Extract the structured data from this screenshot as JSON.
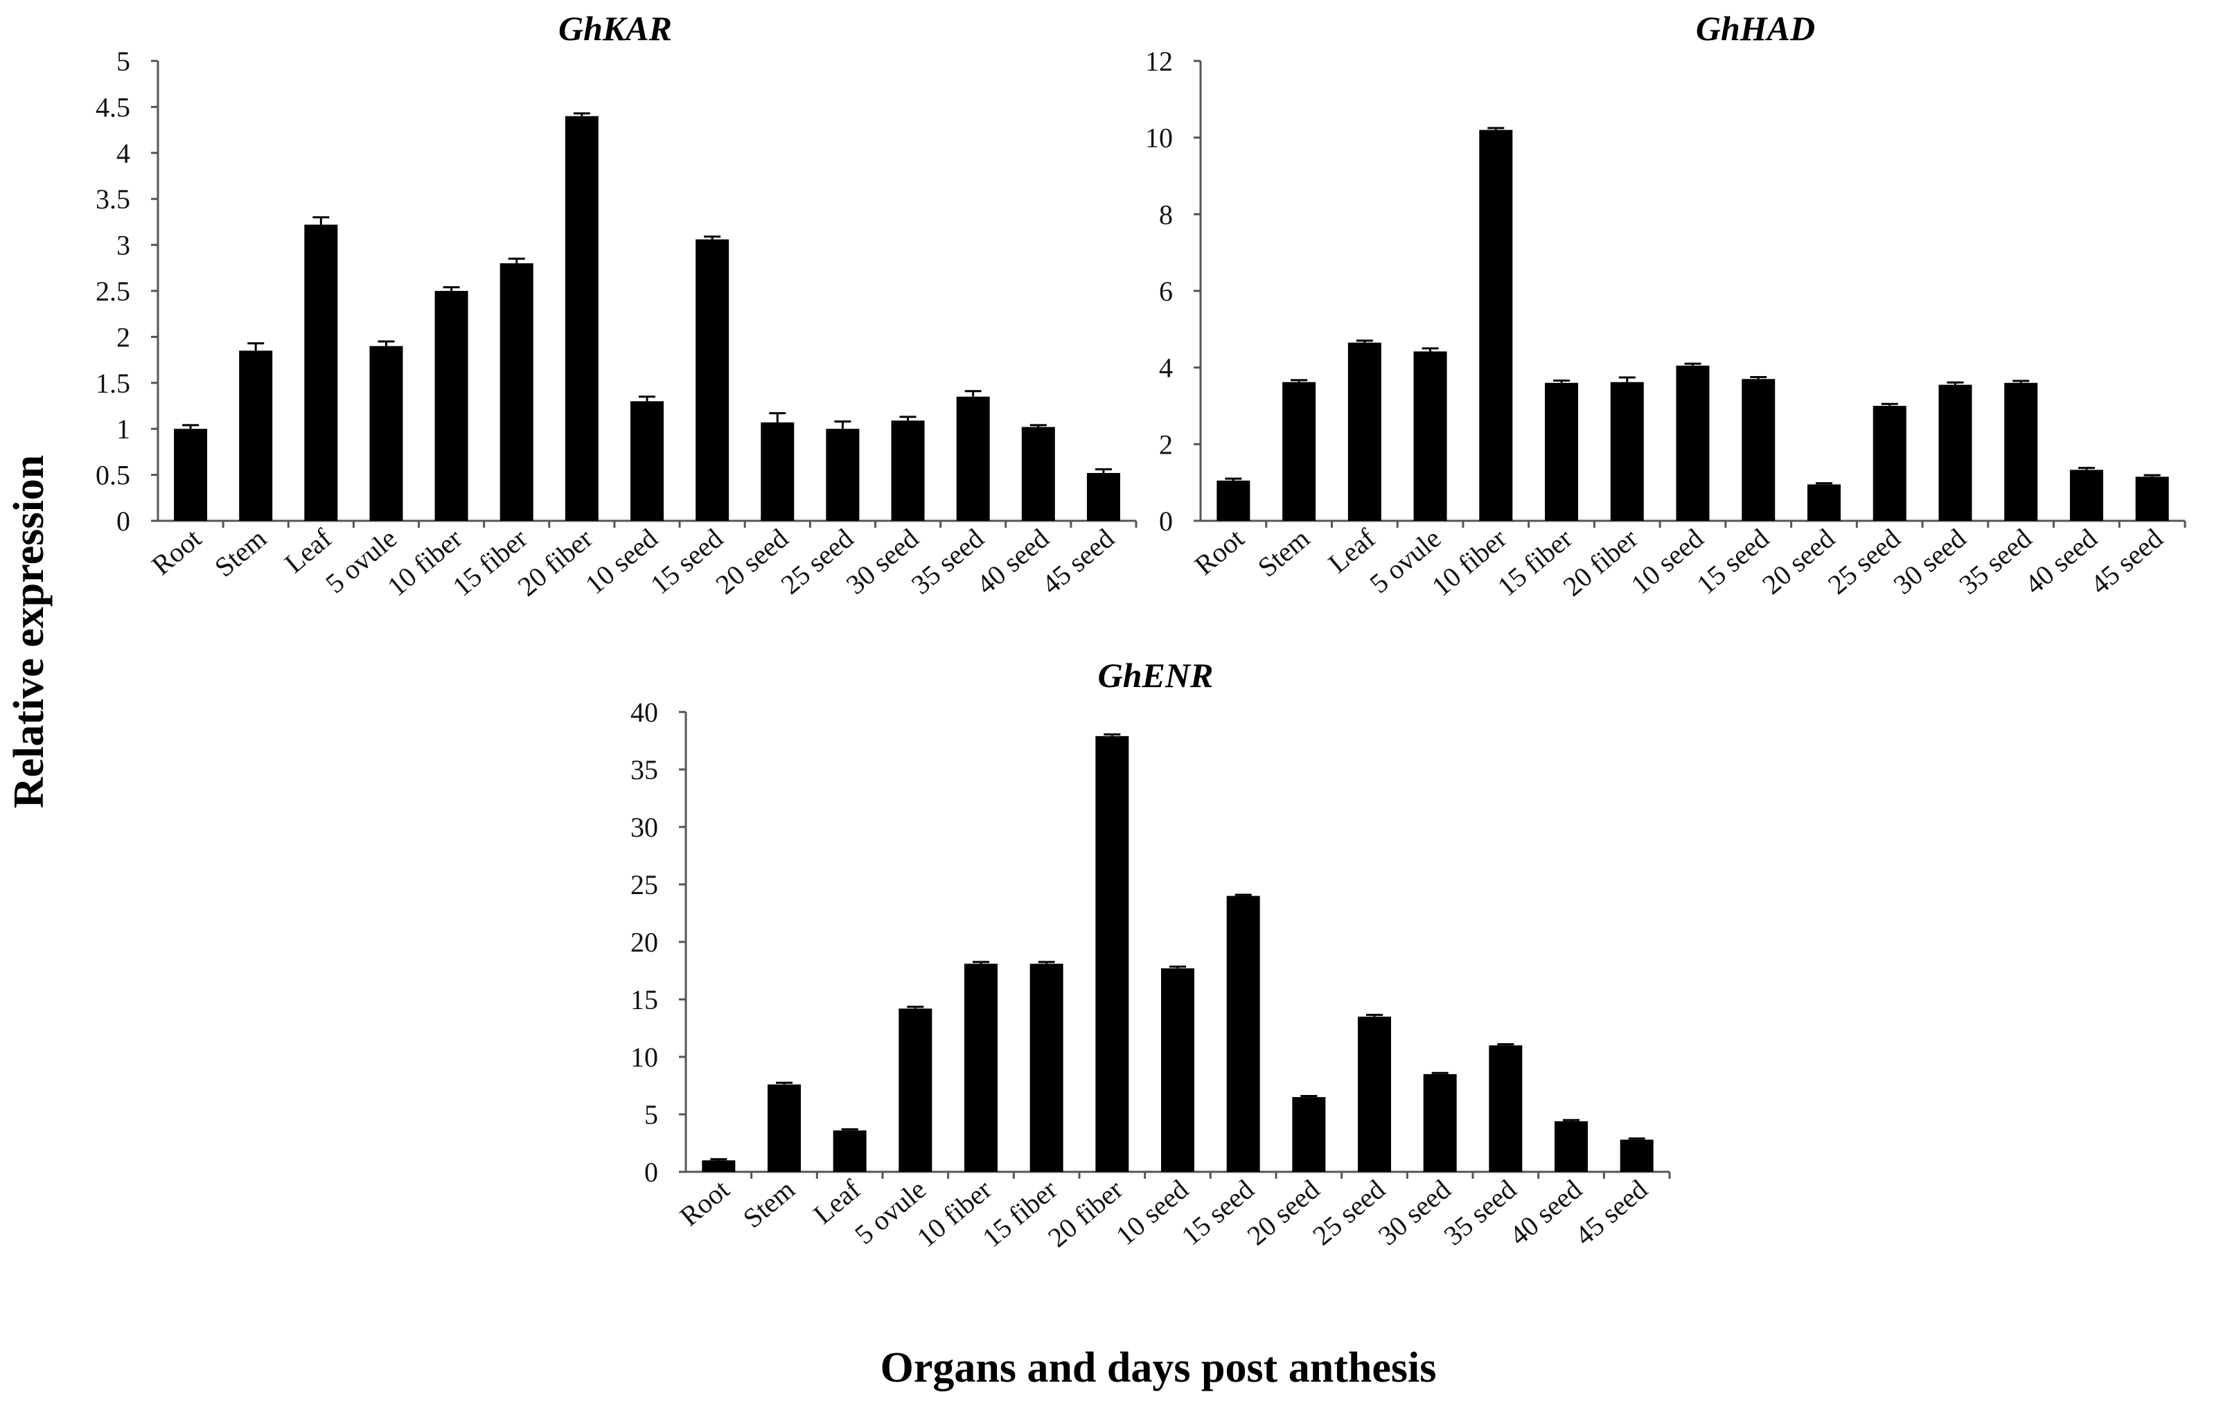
{
  "figure": {
    "ylabel": "Relative expression",
    "xlabel": "Organs and days post anthesis"
  },
  "chart_data": [
    {
      "type": "bar",
      "title": "GhKAR",
      "categories": [
        "Root",
        "Stem",
        "Leaf",
        "5 ovule",
        "10 fiber",
        "15 fiber",
        "20 fiber",
        "10 seed",
        "15 seed",
        "20 seed",
        "25 seed",
        "30 seed",
        "35 seed",
        "40 seed",
        "45 seed"
      ],
      "values": [
        1.0,
        1.85,
        3.22,
        1.9,
        2.5,
        2.8,
        4.4,
        1.3,
        3.06,
        1.07,
        1.0,
        1.09,
        1.35,
        1.02,
        0.52
      ],
      "errors": [
        0.04,
        0.08,
        0.08,
        0.05,
        0.04,
        0.05,
        0.03,
        0.05,
        0.03,
        0.1,
        0.08,
        0.04,
        0.06,
        0.02,
        0.04
      ],
      "ylim": [
        0,
        5
      ],
      "yticks": [
        "0",
        "0.5",
        "1",
        "1.5",
        "2",
        "2.5",
        "3",
        "3.5",
        "4",
        "4.5",
        "5"
      ]
    },
    {
      "type": "bar",
      "title": "GhHAD",
      "categories": [
        "Root",
        "Stem",
        "Leaf",
        "5 ovule",
        "10 fiber",
        "15 fiber",
        "20 fiber",
        "10 seed",
        "15 seed",
        "20 seed",
        "25 seed",
        "30 seed",
        "35 seed",
        "40 seed",
        "45 seed"
      ],
      "values": [
        1.05,
        3.62,
        4.65,
        4.42,
        10.2,
        3.6,
        3.62,
        4.05,
        3.7,
        0.95,
        3.0,
        3.55,
        3.6,
        1.33,
        1.15
      ],
      "errors": [
        0.05,
        0.05,
        0.05,
        0.08,
        0.05,
        0.06,
        0.12,
        0.05,
        0.05,
        0.03,
        0.05,
        0.06,
        0.05,
        0.05,
        0.04
      ],
      "ylim": [
        0,
        12
      ],
      "yticks": [
        "0",
        "2",
        "4",
        "6",
        "8",
        "10",
        "12"
      ]
    },
    {
      "type": "bar",
      "title": "GhENR",
      "categories": [
        "Root",
        "Stem",
        "Leaf",
        "5 ovule",
        "10 fiber",
        "15 fiber",
        "20 fiber",
        "10 seed",
        "15 seed",
        "20 seed",
        "25 seed",
        "30 seed",
        "35 seed",
        "40 seed",
        "45 seed"
      ],
      "values": [
        1.0,
        7.6,
        3.6,
        14.2,
        18.1,
        18.1,
        37.9,
        17.7,
        24.0,
        6.5,
        13.5,
        8.5,
        11.0,
        4.4,
        2.8
      ],
      "errors": [
        0.1,
        0.15,
        0.1,
        0.15,
        0.15,
        0.15,
        0.15,
        0.15,
        0.1,
        0.1,
        0.15,
        0.1,
        0.1,
        0.1,
        0.1
      ],
      "ylim": [
        0,
        40
      ],
      "yticks": [
        "0",
        "5",
        "10",
        "15",
        "20",
        "25",
        "30",
        "35",
        "40"
      ]
    }
  ]
}
